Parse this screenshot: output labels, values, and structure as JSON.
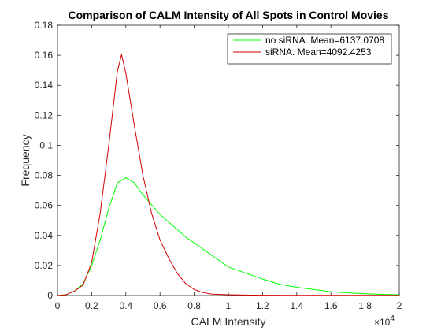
{
  "chart_data": {
    "type": "line",
    "title": "Comparison of CALM Intensity of All Spots in Control Movies",
    "xlabel": "CALM Intensity",
    "ylabel": "Frequency",
    "x_exponent_label": "×10",
    "x_exponent_power": "4",
    "xlim": [
      0,
      20000
    ],
    "ylim": [
      0,
      0.18
    ],
    "x_ticks": [
      0,
      2000,
      4000,
      6000,
      8000,
      10000,
      12000,
      14000,
      16000,
      18000,
      20000
    ],
    "x_tick_labels": [
      "0",
      "0.2",
      "0.4",
      "0.6",
      "0.8",
      "1",
      "1.2",
      "1.4",
      "1.6",
      "1.8",
      "2"
    ],
    "y_ticks": [
      0,
      0.02,
      0.04,
      0.06,
      0.08,
      0.1,
      0.12,
      0.14,
      0.16,
      0.18
    ],
    "y_tick_labels": [
      "0",
      "0.02",
      "0.04",
      "0.06",
      "0.08",
      "0.1",
      "0.12",
      "0.14",
      "0.16",
      "0.18"
    ],
    "grid": false,
    "legend_position": "top-right",
    "series": [
      {
        "name": "no siRNA. Mean=6137.0708",
        "color": "#00ff00",
        "x": [
          0,
          500,
          1000,
          1500,
          2000,
          2500,
          3000,
          3500,
          4000,
          4500,
          5000,
          5500,
          6000,
          6500,
          7000,
          7500,
          8000,
          8500,
          9000,
          9500,
          10000,
          11000,
          12000,
          13000,
          14000,
          15000,
          16000,
          17000,
          18000,
          19000,
          20000
        ],
        "y": [
          0,
          0.0005,
          0.003,
          0.008,
          0.02,
          0.037,
          0.058,
          0.075,
          0.0785,
          0.075,
          0.067,
          0.0605,
          0.054,
          0.049,
          0.044,
          0.039,
          0.035,
          0.031,
          0.027,
          0.023,
          0.019,
          0.015,
          0.011,
          0.0075,
          0.0055,
          0.004,
          0.0025,
          0.0018,
          0.0012,
          0.0008,
          0.0005
        ]
      },
      {
        "name": "siRNA. Mean=4092.4253",
        "color": "#d40000",
        "x": [
          0,
          500,
          1000,
          1500,
          2000,
          2500,
          3000,
          3500,
          3750,
          4000,
          4500,
          5000,
          5500,
          6000,
          6500,
          7000,
          7500,
          8000,
          8500,
          9000,
          9500,
          10000,
          11000,
          12000,
          14000,
          16000,
          18000,
          20000
        ],
        "y": [
          0,
          0.0005,
          0.003,
          0.007,
          0.022,
          0.055,
          0.1,
          0.149,
          0.1605,
          0.148,
          0.113,
          0.08,
          0.055,
          0.037,
          0.025,
          0.015,
          0.008,
          0.004,
          0.002,
          0.001,
          0.0007,
          0.0005,
          0.0003,
          0.0002,
          0.0001,
          0.0001,
          0.0001,
          0.0001
        ]
      }
    ]
  }
}
